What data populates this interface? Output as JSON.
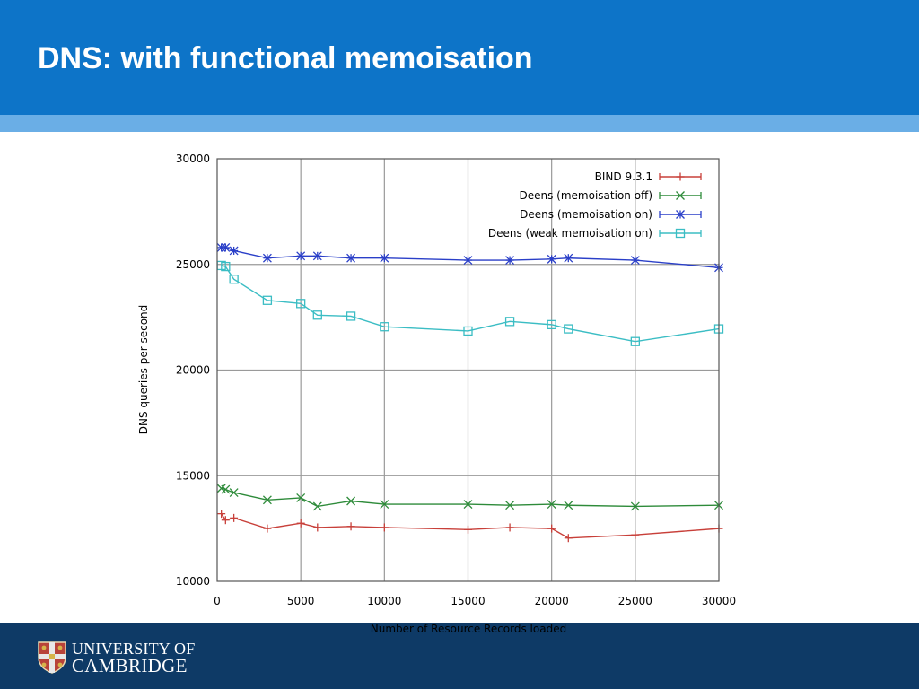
{
  "slide": {
    "title": "DNS: with functional memoisation"
  },
  "footer": {
    "logo_line1": "UNIVERSITY OF",
    "logo_line2": "CAMBRIDGE",
    "crest_icon": "university-crest-icon"
  },
  "colors": {
    "header": "#0d74c8",
    "header_stripe": "#6aaee6",
    "footer": "#0e3a66",
    "bind": "#c8403a",
    "memo_off": "#2e8b3a",
    "memo_on": "#2a3fc8",
    "weak_memo": "#3bbdc4"
  },
  "chart_data": {
    "type": "line",
    "title": "",
    "xlabel": "Number of Resource Records loaded",
    "ylabel": "DNS queries per second",
    "xlim": [
      0,
      30000
    ],
    "ylim": [
      10000,
      30000
    ],
    "xticks": [
      "0",
      "5000",
      "10000",
      "15000",
      "20000",
      "25000",
      "30000"
    ],
    "yticks": [
      "10000",
      "15000",
      "20000",
      "25000",
      "30000"
    ],
    "grid": "vertical and horizontal at major ticks",
    "legend_position": "top-right",
    "series": [
      {
        "name": "BIND 9.3.1",
        "marker": "plus",
        "color": "#c8403a",
        "points": [
          [
            250,
            13200
          ],
          [
            500,
            12900
          ],
          [
            1000,
            13000
          ],
          [
            3000,
            12500
          ],
          [
            5000,
            12750
          ],
          [
            6000,
            12550
          ],
          [
            8000,
            12600
          ],
          [
            10000,
            12550
          ],
          [
            15000,
            12450
          ],
          [
            17500,
            12550
          ],
          [
            20000,
            12500
          ],
          [
            21000,
            12050
          ],
          [
            25000,
            12200
          ],
          [
            30000,
            12500
          ]
        ]
      },
      {
        "name": "Deens (memoisation off)",
        "marker": "cross",
        "color": "#2e8b3a",
        "points": [
          [
            250,
            14400
          ],
          [
            500,
            14350
          ],
          [
            1000,
            14200
          ],
          [
            3000,
            13850
          ],
          [
            5000,
            13950
          ],
          [
            6000,
            13550
          ],
          [
            8000,
            13800
          ],
          [
            10000,
            13650
          ],
          [
            15000,
            13650
          ],
          [
            17500,
            13600
          ],
          [
            20000,
            13650
          ],
          [
            21000,
            13600
          ],
          [
            25000,
            13550
          ],
          [
            30000,
            13600
          ]
        ]
      },
      {
        "name": "Deens (memoisation on)",
        "marker": "star",
        "color": "#2a3fc8",
        "points": [
          [
            250,
            25800
          ],
          [
            500,
            25800
          ],
          [
            1000,
            25650
          ],
          [
            3000,
            25300
          ],
          [
            5000,
            25400
          ],
          [
            6000,
            25400
          ],
          [
            8000,
            25300
          ],
          [
            10000,
            25300
          ],
          [
            15000,
            25200
          ],
          [
            17500,
            25200
          ],
          [
            20000,
            25250
          ],
          [
            21000,
            25300
          ],
          [
            25000,
            25200
          ],
          [
            30000,
            24850
          ]
        ]
      },
      {
        "name": "Deens (weak memoisation on)",
        "marker": "square",
        "color": "#3bbdc4",
        "points": [
          [
            250,
            24950
          ],
          [
            500,
            24900
          ],
          [
            1000,
            24300
          ],
          [
            3000,
            23300
          ],
          [
            5000,
            23150
          ],
          [
            6000,
            22600
          ],
          [
            8000,
            22550
          ],
          [
            10000,
            22050
          ],
          [
            15000,
            21850
          ],
          [
            17500,
            22300
          ],
          [
            20000,
            22150
          ],
          [
            21000,
            21950
          ],
          [
            25000,
            21350
          ],
          [
            30000,
            21950
          ]
        ]
      }
    ]
  }
}
